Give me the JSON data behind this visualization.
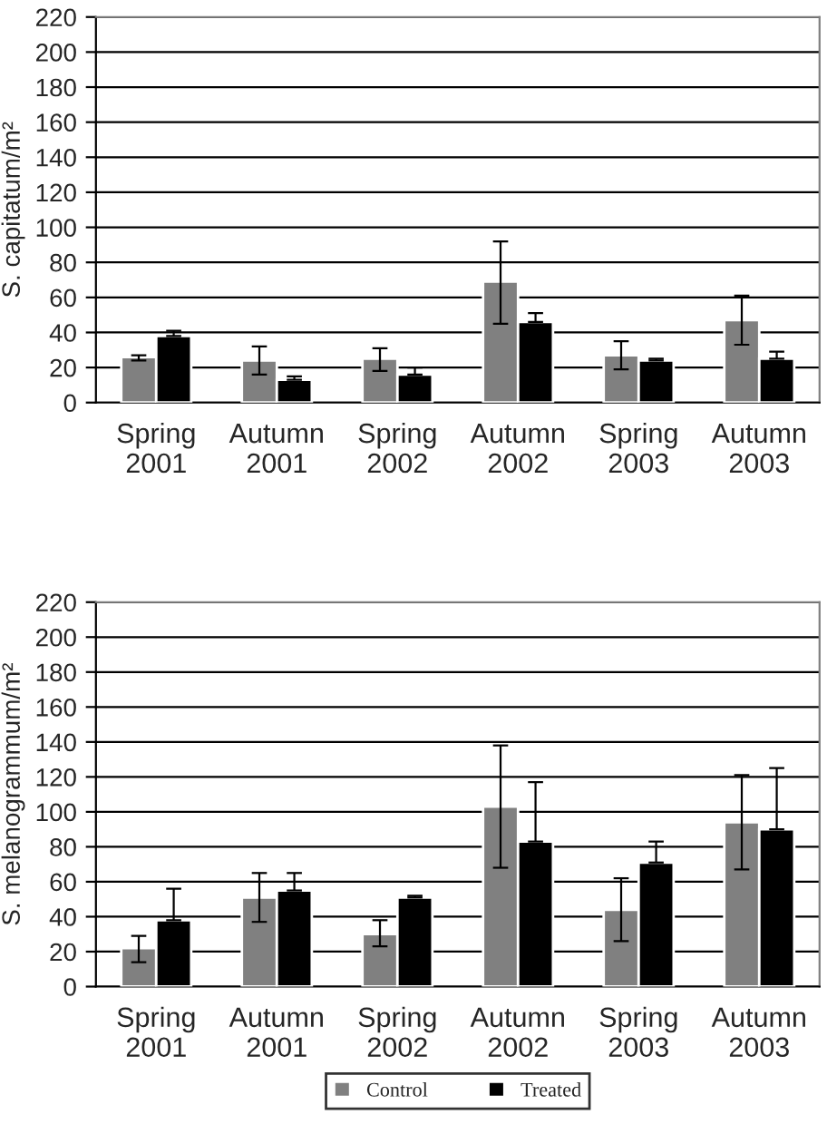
{
  "chart_data": [
    {
      "type": "bar",
      "ylabel": "S. capitatum/m²",
      "categories": [
        "Spring\n2001",
        "Autumn\n2001",
        "Spring\n2002",
        "Autumn\n2002",
        "Spring\n2003",
        "Autumn\n2003"
      ],
      "ylim": [
        0,
        220
      ],
      "yticks": [
        0,
        20,
        40,
        60,
        80,
        100,
        120,
        140,
        160,
        180,
        200,
        220
      ],
      "grid": "y",
      "series": [
        {
          "color": "#808080",
          "values": [
            26,
            24,
            25,
            69,
            27,
            47
          ],
          "errors": [
            [
              24,
              27
            ],
            [
              16,
              32
            ],
            [
              18,
              31
            ],
            [
              45,
              92
            ],
            [
              19,
              35
            ],
            [
              33,
              61
            ]
          ]
        },
        {
          "color": "#000000",
          "values": [
            38,
            13,
            16,
            46,
            24,
            25
          ],
          "errors": [
            [
              38,
              41
            ],
            [
              13,
              15
            ],
            [
              16,
              20
            ],
            [
              46,
              51
            ],
            [
              24,
              25
            ],
            [
              25,
              29
            ]
          ]
        }
      ]
    },
    {
      "type": "bar",
      "ylabel": "S. melanogrammum/m²",
      "categories": [
        "Spring\n2001",
        "Autumn\n2001",
        "Spring\n2002",
        "Autumn\n2002",
        "Spring\n2003",
        "Autumn\n2003"
      ],
      "ylim": [
        0,
        220
      ],
      "yticks": [
        0,
        20,
        40,
        60,
        80,
        100,
        120,
        140,
        160,
        180,
        200,
        220
      ],
      "grid": "y",
      "legend": "bottom",
      "series": [
        {
          "name": "Control",
          "color": "#808080",
          "values": [
            22,
            51,
            30,
            103,
            44,
            94
          ],
          "errors": [
            [
              14,
              29
            ],
            [
              37,
              65
            ],
            [
              23,
              38
            ],
            [
              68,
              138
            ],
            [
              26,
              62
            ],
            [
              67,
              121
            ]
          ]
        },
        {
          "name": "Treated",
          "color": "#000000",
          "values": [
            38,
            55,
            51,
            83,
            71,
            90
          ],
          "errors": [
            [
              38,
              56
            ],
            [
              55,
              65
            ],
            [
              51,
              52
            ],
            [
              83,
              117
            ],
            [
              71,
              83
            ],
            [
              90,
              125
            ]
          ]
        }
      ]
    }
  ]
}
